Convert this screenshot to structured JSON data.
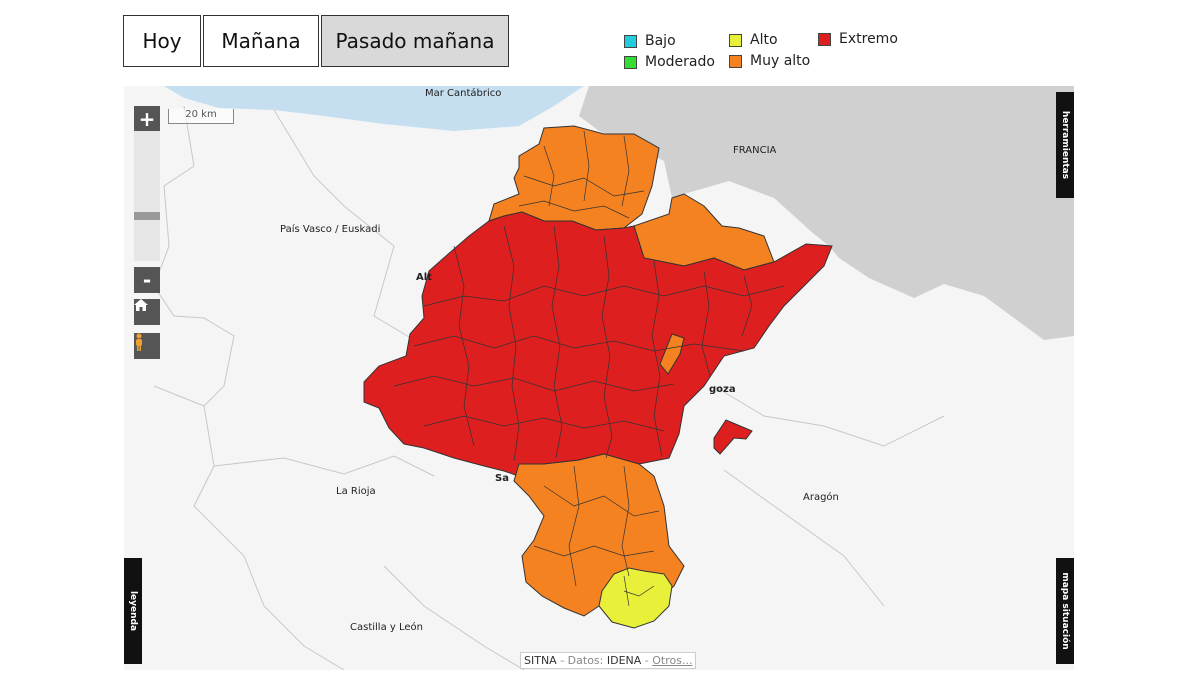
{
  "tabs": [
    {
      "label": "Hoy",
      "active": false
    },
    {
      "label": "Mañana",
      "active": false
    },
    {
      "label": "Pasado mañana",
      "active": true
    }
  ],
  "legend": [
    {
      "label": "Bajo",
      "color": "#22ccdd"
    },
    {
      "label": "Moderado",
      "color": "#33dd33"
    },
    {
      "label": "Alto",
      "color": "#e8f03a"
    },
    {
      "label": "Muy alto",
      "color": "#f58220"
    },
    {
      "label": "Extremo",
      "color": "#dd1f1f"
    }
  ],
  "map": {
    "zoom_in": "+",
    "zoom_out": "-",
    "scale_label": "20 km",
    "side_tabs": {
      "tools": "herramientas",
      "legend": "leyenda",
      "situation": "mapa situación"
    },
    "labels": {
      "sea": "Mar Cantábrico",
      "france": "FRANCIA",
      "basque": "País Vasco / Euskadi",
      "rioja": "La Rioja",
      "aragon": "Aragón",
      "castilla": "Castilla y León",
      "alt_fragment": "Alt",
      "goza_fragment": "goza",
      "san_fragment": "Sa"
    },
    "attribution": {
      "sitna": "SITNA",
      "sep1": " - Datos: ",
      "idena": "IDENA",
      "sep2": " - ",
      "others": "Otros..."
    },
    "colors": {
      "sea": "#c5def0",
      "france": "#d0d0d0",
      "land": "#f5f5f5",
      "extreme": "#dd1f1f",
      "very_high": "#f58220",
      "high": "#e8f03a"
    }
  }
}
